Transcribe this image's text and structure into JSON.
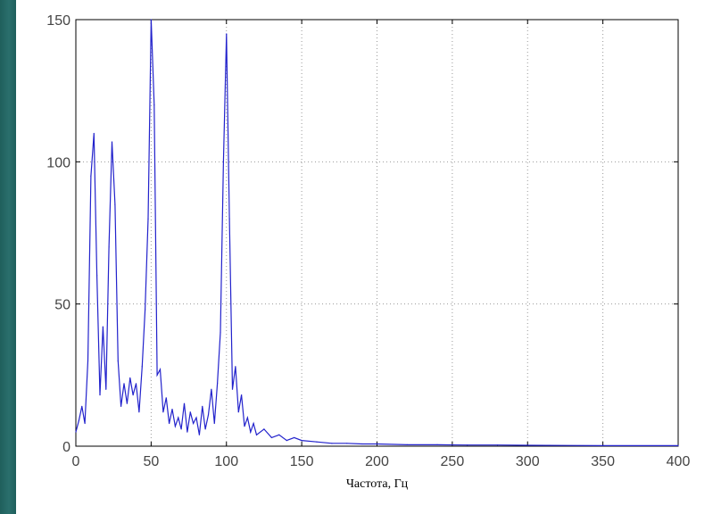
{
  "chart_data": {
    "type": "line",
    "title": "",
    "xlabel": "Частота, Гц",
    "ylabel": "",
    "xlim": [
      0,
      400
    ],
    "ylim": [
      0,
      150
    ],
    "grid": true,
    "xticks": [
      0,
      50,
      100,
      150,
      200,
      250,
      300,
      350,
      400
    ],
    "yticks": [
      0,
      50,
      100,
      150
    ],
    "line_color": "#2222cc",
    "series": [
      {
        "x": [
          0,
          2,
          4,
          6,
          8,
          10,
          12,
          14,
          16,
          18,
          20,
          22,
          24,
          26,
          28,
          30,
          32,
          34,
          36,
          38,
          40,
          42,
          44,
          46,
          48,
          50,
          52,
          54,
          56,
          58,
          60,
          62,
          64,
          66,
          68,
          70,
          72,
          74,
          76,
          78,
          80,
          82,
          84,
          86,
          88,
          90,
          92,
          94,
          96,
          98,
          100,
          102,
          104,
          106,
          108,
          110,
          112,
          114,
          116,
          118,
          120,
          125,
          130,
          135,
          140,
          145,
          150,
          160,
          170,
          180,
          190,
          200,
          220,
          240,
          260,
          280,
          300,
          350,
          400
        ],
        "values": [
          5,
          9,
          14,
          8,
          30,
          95,
          110,
          60,
          18,
          42,
          20,
          70,
          107,
          85,
          30,
          14,
          22,
          15,
          24,
          18,
          22,
          12,
          28,
          48,
          80,
          150,
          120,
          25,
          27,
          12,
          17,
          8,
          13,
          7,
          10,
          6,
          15,
          5,
          12,
          8,
          10,
          4,
          14,
          6,
          11,
          20,
          8,
          22,
          40,
          100,
          145,
          80,
          20,
          28,
          12,
          18,
          7,
          10,
          5,
          8,
          4,
          6,
          3,
          4,
          2,
          3,
          2,
          1.5,
          1,
          1,
          0.8,
          0.8,
          0.5,
          0.5,
          0.4,
          0.4,
          0.3,
          0.2,
          0.2
        ]
      }
    ]
  }
}
